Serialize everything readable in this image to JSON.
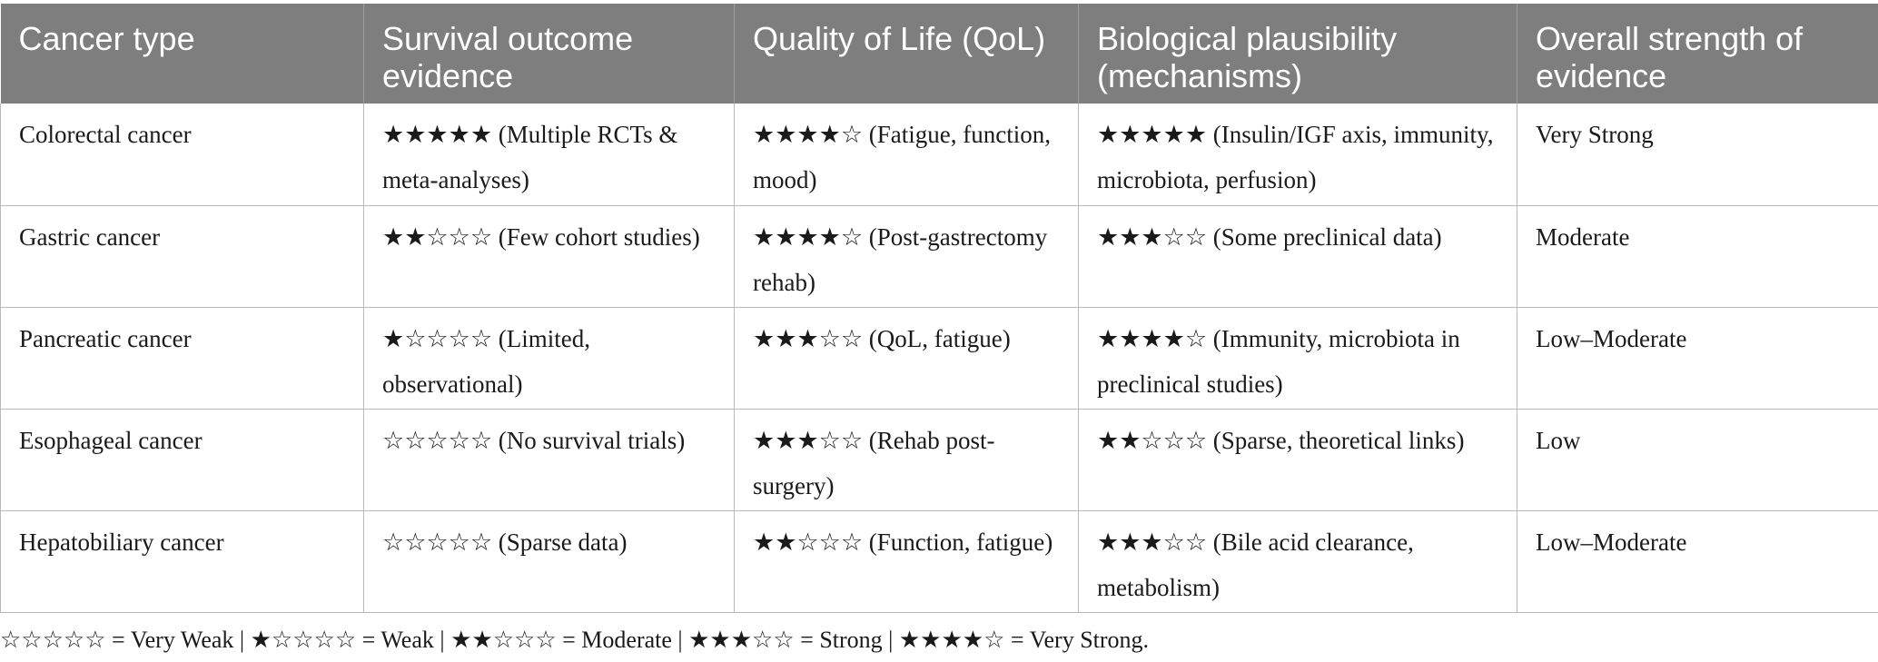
{
  "table": {
    "headers": [
      "Cancer type",
      "Survival outcome evidence",
      "Quality of Life (QoL)",
      "Biological plausibility (mechanisms)",
      "Overall strength of evidence"
    ],
    "rows": [
      [
        "Colorectal cancer",
        "★★★★★ (Multiple RCTs & meta-analyses)",
        "★★★★☆ (Fatigue, function, mood)",
        "★★★★★ (Insulin/IGF axis, immunity, microbiota, perfusion)",
        "Very Strong"
      ],
      [
        "Gastric cancer",
        "★★☆☆☆ (Few cohort studies)",
        "★★★★☆ (Post-gastrectomy rehab)",
        "★★★☆☆ (Some preclinical data)",
        "Moderate"
      ],
      [
        "Pancreatic cancer",
        "★☆☆☆☆ (Limited, observational)",
        "★★★☆☆ (QoL, fatigue)",
        "★★★★☆ (Immunity, microbiota in preclinical studies)",
        "Low–Moderate"
      ],
      [
        "Esophageal cancer",
        "☆☆☆☆☆ (No survival trials)",
        "★★★☆☆ (Rehab post-surgery)",
        "★★☆☆☆ (Sparse, theoretical links)",
        "Low"
      ],
      [
        "Hepatobiliary cancer",
        "☆☆☆☆☆ (Sparse data)",
        "★★☆☆☆ (Function, fatigue)",
        "★★★☆☆ (Bile acid clearance, metabolism)",
        "Low–Moderate"
      ]
    ]
  },
  "footnote": "☆☆☆☆☆ = Very Weak | ★☆☆☆☆ = Weak | ★★☆☆☆ = Moderate | ★★★☆☆ = Strong | ★★★★☆ = Very Strong."
}
